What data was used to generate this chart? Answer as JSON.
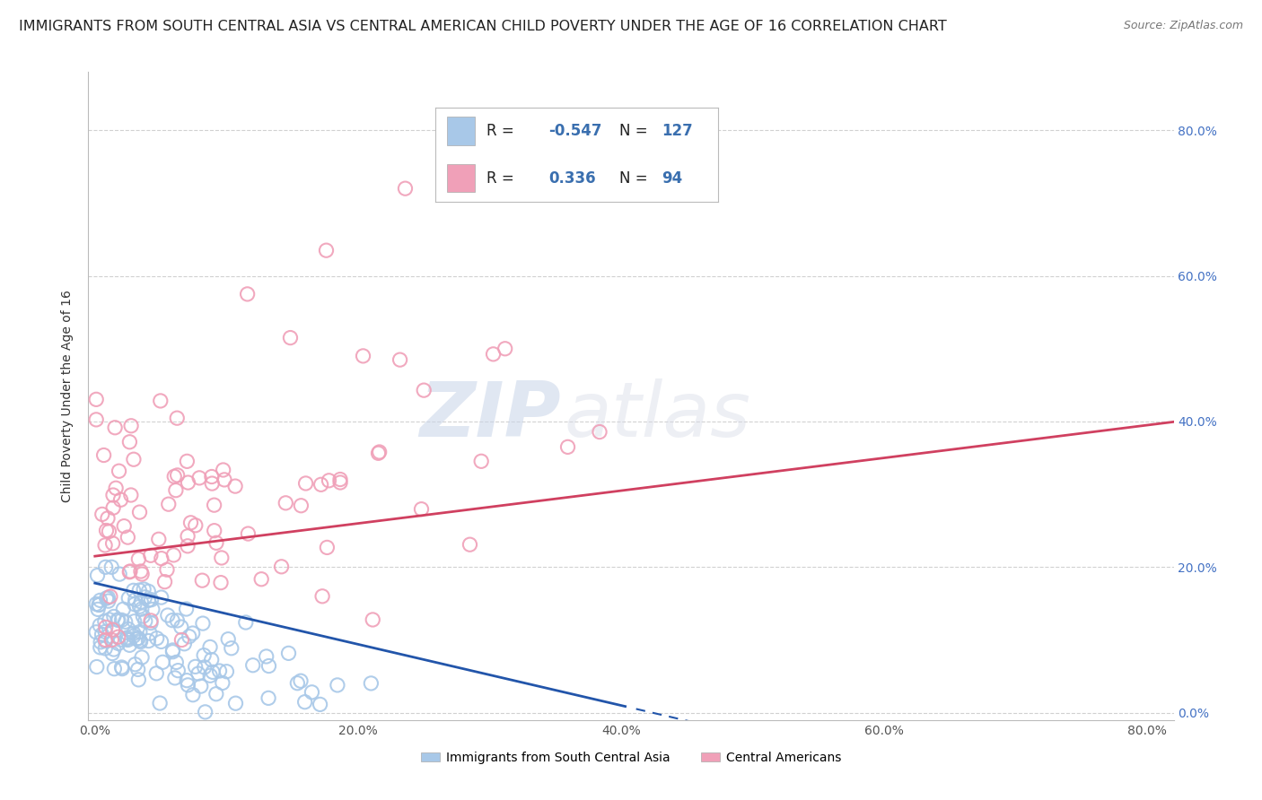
{
  "title": "IMMIGRANTS FROM SOUTH CENTRAL ASIA VS CENTRAL AMERICAN CHILD POVERTY UNDER THE AGE OF 16 CORRELATION CHART",
  "source": "Source: ZipAtlas.com",
  "ylabel": "Child Poverty Under the Age of 16",
  "xlabel_blue": "Immigrants from South Central Asia",
  "xlabel_pink": "Central Americans",
  "xlim": [
    -0.005,
    0.82
  ],
  "ylim": [
    -0.01,
    0.88
  ],
  "yticks": [
    0.0,
    0.2,
    0.4,
    0.6,
    0.8
  ],
  "xticks": [
    0.0,
    0.2,
    0.4,
    0.6,
    0.8
  ],
  "blue_R": -0.547,
  "blue_N": 127,
  "pink_R": 0.336,
  "pink_N": 94,
  "blue_color": "#a8c8e8",
  "pink_color": "#f0a0b8",
  "blue_line_color": "#2255aa",
  "pink_line_color": "#d04060",
  "watermark_zip": "ZIP",
  "watermark_atlas": "atlas",
  "background_color": "#ffffff",
  "grid_color": "#cccccc",
  "title_color": "#222222",
  "title_fontsize": 11.5,
  "right_tick_color": "#4472c4",
  "blue_trend_intercept": 0.178,
  "blue_trend_slope": -0.42,
  "pink_trend_intercept": 0.215,
  "pink_trend_slope": 0.225
}
